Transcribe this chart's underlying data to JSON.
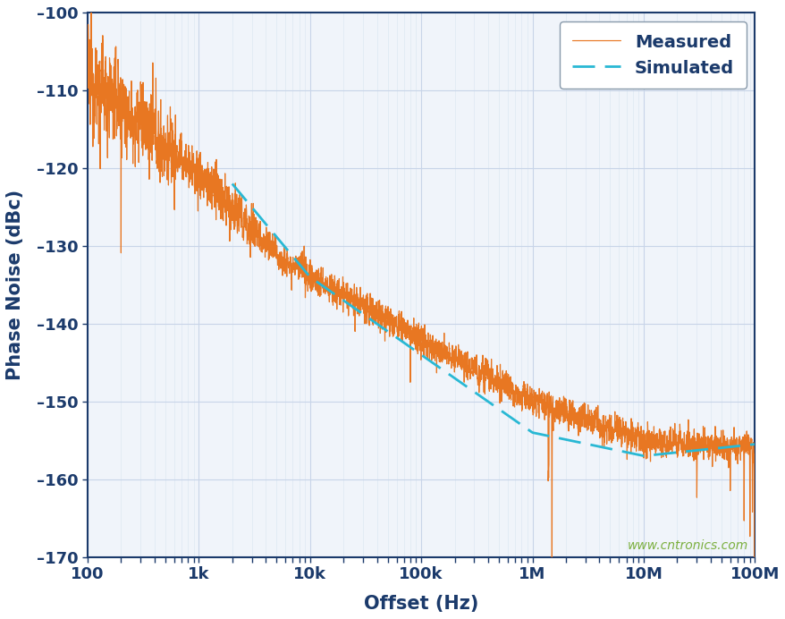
{
  "title": "",
  "xlabel": "Offset (Hz)",
  "ylabel": "Phase Noise (dBc)",
  "xlim": [
    100,
    100000000.0
  ],
  "ylim": [
    -170,
    -100
  ],
  "yticks": [
    -170,
    -160,
    -150,
    -140,
    -130,
    -120,
    -110,
    -100
  ],
  "xtick_vals": [
    100,
    1000,
    10000,
    100000,
    1000000,
    10000000,
    100000000
  ],
  "xtick_labels": [
    "100",
    "1k",
    "10k",
    "100k",
    "1M",
    "10M",
    "100M"
  ],
  "measured_color": "#E87722",
  "simulated_color": "#29B8D4",
  "background_color": "#FFFFFF",
  "plot_bg_color": "#F0F4FA",
  "grid_major_color": "#C8D4E8",
  "grid_minor_color": "#D8E4F0",
  "axis_label_color": "#1B3A6B",
  "spine_color": "#1B3A6B",
  "watermark": "www.cntronics.com",
  "watermark_color": "#7BAF3E",
  "legend_text_color": "#1B3A6B"
}
